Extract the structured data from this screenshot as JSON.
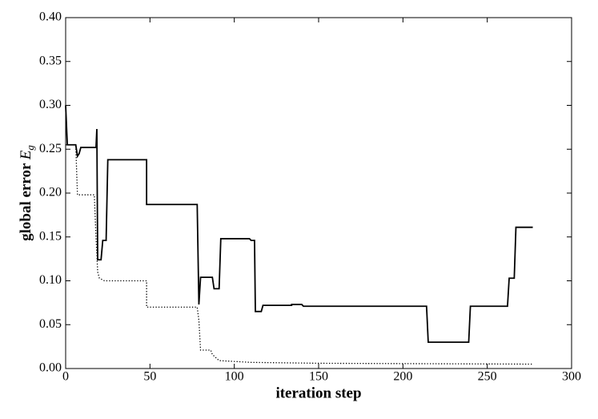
{
  "chart_data": {
    "type": "line",
    "xlabel": "iteration step",
    "ylabel": "global error",
    "ylabel_symbol": "E",
    "ylabel_subscript": "g",
    "xlim": [
      0,
      300
    ],
    "xticks": [
      0,
      50,
      100,
      150,
      200,
      250,
      300
    ],
    "ylim": [
      0,
      0.4
    ],
    "yticks": [
      {
        "value": 0,
        "label": "0.00"
      },
      {
        "value": 0.05,
        "label": "0.05"
      },
      {
        "value": 0.1,
        "label": "0.10"
      },
      {
        "value": 0.15,
        "label": "0.15"
      },
      {
        "value": 0.2,
        "label": "0.20"
      },
      {
        "value": 0.25,
        "label": "0.25"
      },
      {
        "value": 0.3,
        "label": "0.30"
      },
      {
        "value": 0.35,
        "label": "0.35"
      },
      {
        "value": 0.4,
        "label": "0.40"
      }
    ],
    "series": [
      {
        "color": "#000000",
        "dash": "solid",
        "x": [
          0,
          1,
          6,
          7,
          8,
          9,
          18,
          18.5,
          19,
          21,
          22,
          24,
          25,
          48,
          48,
          78,
          79,
          80,
          87,
          88,
          91,
          92,
          109,
          110,
          112,
          112.5,
          116,
          117,
          134,
          134,
          140,
          141,
          214,
          215,
          239,
          240,
          262,
          263,
          266,
          267,
          277
        ],
        "values": [
          0.3,
          0.255,
          0.255,
          0.242,
          0.245,
          0.252,
          0.252,
          0.273,
          0.124,
          0.124,
          0.146,
          0.146,
          0.238,
          0.238,
          0.187,
          0.187,
          0.073,
          0.104,
          0.104,
          0.091,
          0.091,
          0.148,
          0.148,
          0.146,
          0.146,
          0.065,
          0.065,
          0.072,
          0.072,
          0.073,
          0.073,
          0.071,
          0.071,
          0.03,
          0.03,
          0.071,
          0.071,
          0.103,
          0.103,
          0.161,
          0.161
        ]
      },
      {
        "color": "#000000",
        "dash": "dotted",
        "x": [
          0,
          6,
          7,
          17,
          18,
          19,
          20,
          23,
          48,
          48,
          78,
          79,
          80,
          86,
          87,
          91,
          110,
          150,
          277
        ],
        "values": [
          0.255,
          0.255,
          0.198,
          0.198,
          0.15,
          0.11,
          0.103,
          0.1,
          0.1,
          0.07,
          0.07,
          0.055,
          0.021,
          0.021,
          0.016,
          0.009,
          0.007,
          0.006,
          0.005
        ]
      }
    ]
  }
}
